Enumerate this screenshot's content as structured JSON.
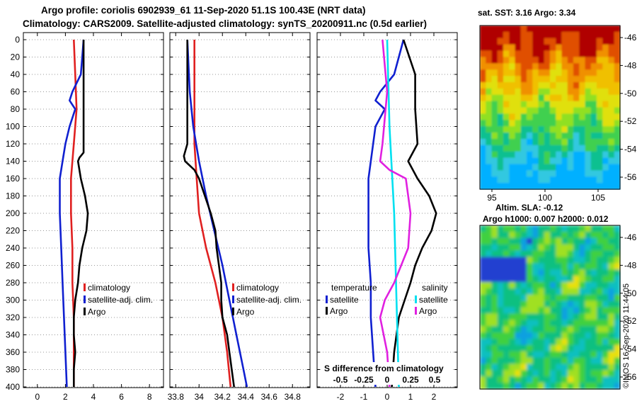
{
  "title": {
    "line1": "Argo profile: coriolis 6902939_61 11-Sep-2020 51.1S 100.43E (NRT data)",
    "line2": "Climatology: CARS2009. Satellite-adjusted climatology: synTS_20200911.nc (0.5d earlier)"
  },
  "colors": {
    "climatology": "#e02020",
    "satellite": "#1020d0",
    "argo": "#000000",
    "sat_salinity": "#00e0f0",
    "argo_salinity": "#e020e0"
  },
  "chart_data": [
    {
      "type": "line",
      "name": "temperature-profile",
      "ylabel": "depth",
      "ylim": [
        400,
        0
      ],
      "yticks": [
        "0",
        "20",
        "40",
        "60",
        "80",
        "100",
        "120",
        "140",
        "160",
        "180",
        "200",
        "220",
        "240",
        "260",
        "280",
        "300",
        "320",
        "340",
        "360",
        "380",
        "400"
      ],
      "xlim": [
        -1,
        9
      ],
      "xticks": [
        "0",
        "2",
        "4",
        "6",
        "8"
      ],
      "legend": [
        "climatology",
        "satellite-adj. clim.",
        "Argo"
      ],
      "series": [
        {
          "name": "climatology",
          "depth": [
            0,
            40,
            80,
            120,
            160,
            200,
            240,
            280,
            320,
            360,
            400
          ],
          "values": [
            2.6,
            2.7,
            2.8,
            2.6,
            2.4,
            2.4,
            2.5,
            2.5,
            2.6,
            2.6,
            2.6
          ]
        },
        {
          "name": "satellite-adj. clim.",
          "depth": [
            0,
            20,
            40,
            60,
            70,
            80,
            90,
            100,
            120,
            140,
            160,
            200,
            240,
            280,
            320,
            360,
            400
          ],
          "values": [
            3.3,
            3.2,
            3.1,
            2.5,
            2.3,
            2.7,
            2.5,
            2.3,
            2.0,
            1.8,
            1.6,
            1.6,
            1.7,
            1.8,
            1.9,
            2.0,
            2.1
          ]
        },
        {
          "name": "Argo",
          "depth": [
            0,
            40,
            80,
            120,
            130,
            136,
            140,
            160,
            180,
            200,
            220,
            240,
            260,
            280,
            300,
            320,
            340,
            360,
            380,
            400
          ],
          "values": [
            3.3,
            3.3,
            3.3,
            3.3,
            3.3,
            3.0,
            2.9,
            3.1,
            3.4,
            3.6,
            3.5,
            3.2,
            3.0,
            2.9,
            2.7,
            2.6,
            2.6,
            2.7,
            2.6,
            2.6
          ]
        }
      ]
    },
    {
      "type": "line",
      "name": "salinity-profile",
      "ylim": [
        400,
        0
      ],
      "xlim": [
        33.75,
        34.95
      ],
      "xticks": [
        "33.8",
        "34",
        "34.2",
        "34.4",
        "34.6",
        "34.8"
      ],
      "legend": [
        "climatology",
        "satellite-adj. clim.",
        "Argo"
      ],
      "series": [
        {
          "name": "climatology",
          "depth": [
            0,
            60,
            120,
            160,
            200,
            240,
            280,
            320,
            360,
            400
          ],
          "values": [
            33.96,
            33.96,
            33.96,
            33.98,
            34.0,
            34.06,
            34.14,
            34.2,
            34.24,
            34.27
          ]
        },
        {
          "name": "satellite-adj. clim.",
          "depth": [
            0,
            60,
            100,
            140,
            180,
            220,
            260,
            300,
            340,
            380,
            400
          ],
          "values": [
            33.9,
            33.92,
            33.95,
            34.0,
            34.06,
            34.13,
            34.2,
            34.26,
            34.32,
            34.38,
            34.41
          ]
        },
        {
          "name": "Argo",
          "depth": [
            0,
            60,
            120,
            134,
            140,
            150,
            160,
            180,
            200,
            220,
            240,
            260,
            280,
            300,
            320,
            340,
            360,
            380,
            400
          ],
          "values": [
            33.9,
            33.9,
            33.9,
            33.87,
            33.88,
            33.96,
            34.0,
            34.05,
            34.1,
            34.14,
            34.15,
            34.17,
            34.19,
            34.19,
            34.2,
            34.24,
            34.26,
            34.28,
            34.3
          ]
        }
      ]
    },
    {
      "type": "line",
      "name": "difference-profile",
      "xlim": [
        -3,
        3
      ],
      "xticks": [
        "-2",
        "-1",
        "0",
        "1",
        "2"
      ],
      "xticks_secondary": [
        "-0.5",
        "-0.25",
        "0",
        "0.25",
        "0.5"
      ],
      "secondary_label": "S difference from climatology",
      "legend_groups": [
        {
          "title": "temperature",
          "entries": [
            "satellite",
            "Argo"
          ]
        },
        {
          "title": "salinity",
          "entries": [
            "satellite",
            "Argo"
          ]
        }
      ],
      "series": [
        {
          "name": "temperature satellite",
          "depth": [
            0,
            20,
            40,
            60,
            70,
            80,
            100,
            120,
            160,
            200,
            240,
            280,
            320,
            360,
            400
          ],
          "values": [
            0.7,
            0.5,
            0.3,
            -0.3,
            -0.5,
            -0.1,
            -0.5,
            -0.6,
            -0.8,
            -0.8,
            -0.8,
            -0.7,
            -0.7,
            -0.6,
            -0.5
          ]
        },
        {
          "name": "temperature Argo",
          "depth": [
            0,
            40,
            80,
            120,
            130,
            140,
            160,
            180,
            200,
            220,
            240,
            260,
            280,
            320,
            360,
            400
          ],
          "values": [
            0.7,
            1.2,
            1.2,
            1.3,
            1.1,
            0.9,
            1.3,
            1.8,
            2.1,
            1.9,
            1.5,
            1.2,
            1.0,
            0.5,
            0.3,
            0.2
          ]
        },
        {
          "name": "salinity satellite",
          "depth": [
            0,
            100,
            200,
            300,
            400
          ],
          "values": [
            0.0,
            0.1,
            0.3,
            0.4,
            0.5
          ]
        },
        {
          "name": "salinity Argo",
          "depth": [
            0,
            60,
            120,
            140,
            150,
            160,
            200,
            240,
            280,
            300,
            320,
            360,
            400
          ],
          "values": [
            -0.2,
            0.0,
            -0.2,
            -0.3,
            0.1,
            0.8,
            1.0,
            0.9,
            0.3,
            -0.1,
            -0.3,
            0.0,
            0.1
          ]
        }
      ]
    },
    {
      "type": "heatmap",
      "name": "sst-map",
      "title": "sat. SST: 3.16 Argo: 3.34",
      "xticks": [
        "95",
        "100",
        "105"
      ],
      "yticks": [
        "-46",
        "-48",
        "-50",
        "-52",
        "-54",
        "-56"
      ]
    },
    {
      "type": "heatmap",
      "name": "sla-map",
      "title": "Altim. SLA: -0.12",
      "subtitle": "Argo h1000: 0.007 h2000: 0.012",
      "yticks": [
        "-46",
        "-48",
        "-50",
        "-52",
        "-54",
        "-56"
      ]
    }
  ],
  "credit": "©IMOS 16-Sep-2020 11:44:05"
}
